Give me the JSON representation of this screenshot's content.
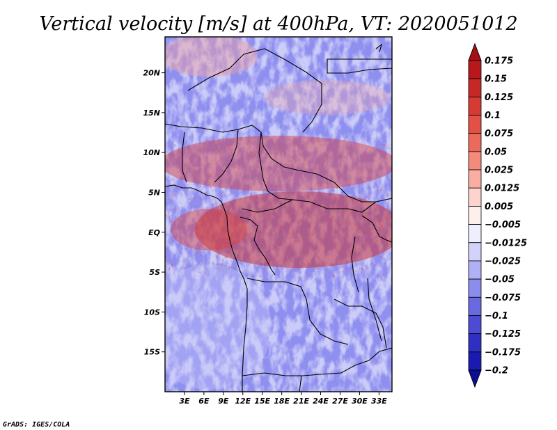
{
  "chart_data": {
    "type": "heatmap",
    "title": "Vertical velocity [m/s] at 400hPa, VT: 2020051012",
    "variable": "Vertical velocity",
    "units": "m/s",
    "level": "400hPa",
    "valid_time": "2020051012",
    "lon_range": [
      0,
      35
    ],
    "lat_range": [
      -20,
      24.5
    ],
    "x_ticks": [
      {
        "value": 3,
        "label": "3E"
      },
      {
        "value": 6,
        "label": "6E"
      },
      {
        "value": 9,
        "label": "9E"
      },
      {
        "value": 12,
        "label": "12E"
      },
      {
        "value": 15,
        "label": "15E"
      },
      {
        "value": 18,
        "label": "18E"
      },
      {
        "value": 21,
        "label": "21E"
      },
      {
        "value": 24,
        "label": "24E"
      },
      {
        "value": 27,
        "label": "27E"
      },
      {
        "value": 30,
        "label": "30E"
      },
      {
        "value": 33,
        "label": "33E"
      }
    ],
    "y_ticks": [
      {
        "value": 20,
        "label": "20N"
      },
      {
        "value": 15,
        "label": "15N"
      },
      {
        "value": 10,
        "label": "10N"
      },
      {
        "value": 5,
        "label": "5N"
      },
      {
        "value": 0,
        "label": "EQ"
      },
      {
        "value": -5,
        "label": "5S"
      },
      {
        "value": -10,
        "label": "10S"
      },
      {
        "value": -15,
        "label": "15S"
      }
    ],
    "colorbar": {
      "labels": [
        "0.175",
        "0.15",
        "0.125",
        "0.1",
        "0.075",
        "0.05",
        "0.025",
        "0.0125",
        "0.005",
        "−0.005",
        "−0.0125",
        "−0.025",
        "−0.05",
        "−0.075",
        "−0.1",
        "−0.125",
        "−0.175",
        "−0.2"
      ],
      "colors": [
        "#a50f15",
        "#b8171c",
        "#c62828",
        "#d63a35",
        "#e25046",
        "#ec6a5c",
        "#f48a7c",
        "#f9ada3",
        "#fcd4cd",
        "#fdf0ec",
        "#eeeefc",
        "#d2d2fa",
        "#b0b0f4",
        "#8c8cec",
        "#6a6ae0",
        "#4b4bd4",
        "#2f2fc4",
        "#1a1ab0",
        "#0c0c96"
      ]
    }
  },
  "footer": {
    "credit": "GrADS: IGES/COLA"
  }
}
